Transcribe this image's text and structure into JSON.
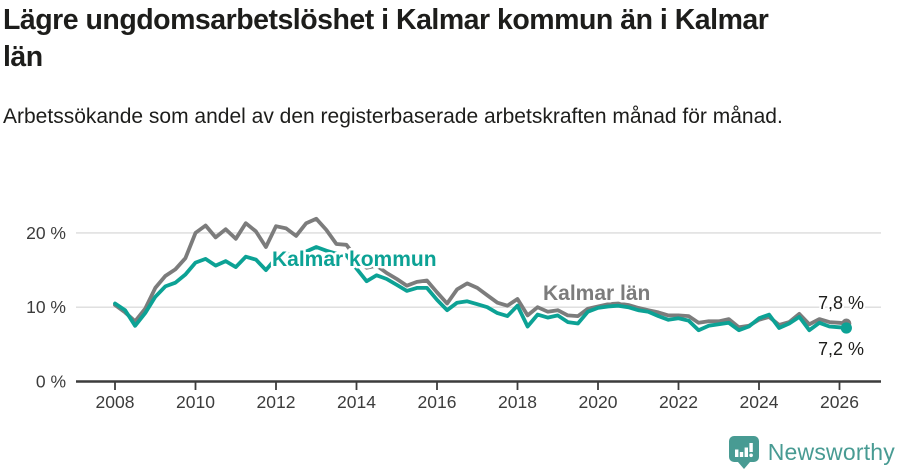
{
  "header": {
    "title": "Lägre ungdomsarbetslöshet i Kalmar kommun än i Kalmar län",
    "subtitle": "Arbetssökande som andel av den registerbaserade arbetskraften månad för månad."
  },
  "footer": {
    "brand": "Newsworthy",
    "icon": "bar-chart-pin-icon"
  },
  "colors": {
    "kommun_line": "#0ca295",
    "lan_line": "#7c7c7c",
    "grid": "#dcdcdc",
    "axis": "#3c3c3c",
    "text": "#1d1d1b",
    "brand_teal": "#489b93"
  },
  "chart_data": {
    "type": "line",
    "unit": "%",
    "grid": true,
    "legend_position": "inline-labels-on-lines",
    "x_axis": {
      "range": [
        2008,
        2026.5
      ],
      "ticks": [
        2008,
        2010,
        2012,
        2014,
        2016,
        2018,
        2020,
        2022,
        2024,
        2026
      ]
    },
    "y_axis": {
      "range": [
        0,
        23
      ],
      "ticks": [
        {
          "value": 0,
          "label": "0 %"
        },
        {
          "value": 10,
          "label": "10 %"
        },
        {
          "value": 20,
          "label": "20 %"
        }
      ]
    },
    "series": [
      {
        "name": "Kalmar län",
        "color": "#7c7c7c",
        "end_label": "7,8 %",
        "x": [
          2008.0,
          2008.25,
          2008.5,
          2008.75,
          2009.0,
          2009.25,
          2009.5,
          2009.75,
          2010.0,
          2010.25,
          2010.5,
          2010.75,
          2011.0,
          2011.25,
          2011.5,
          2011.75,
          2012.0,
          2012.25,
          2012.5,
          2012.75,
          2013.0,
          2013.25,
          2013.5,
          2013.75,
          2014.0,
          2014.25,
          2014.5,
          2014.75,
          2015.0,
          2015.25,
          2015.5,
          2015.75,
          2016.0,
          2016.25,
          2016.5,
          2016.75,
          2017.0,
          2017.25,
          2017.5,
          2017.75,
          2018.0,
          2018.25,
          2018.5,
          2018.75,
          2019.0,
          2019.25,
          2019.5,
          2019.75,
          2020.0,
          2020.25,
          2020.5,
          2020.75,
          2021.0,
          2021.25,
          2021.5,
          2021.75,
          2022.0,
          2022.25,
          2022.5,
          2022.75,
          2023.0,
          2023.25,
          2023.5,
          2023.75,
          2024.0,
          2024.25,
          2024.5,
          2024.75,
          2025.0,
          2025.25,
          2025.5,
          2025.75,
          2026.0,
          2026.17
        ],
        "values": [
          10.3,
          9.3,
          8.1,
          9.8,
          12.6,
          14.2,
          15.1,
          16.6,
          20.0,
          21.0,
          19.4,
          20.5,
          19.2,
          21.3,
          20.2,
          18.1,
          20.9,
          20.6,
          19.6,
          21.3,
          21.9,
          20.4,
          18.5,
          18.4,
          16.6,
          15.3,
          15.6,
          14.6,
          13.8,
          12.9,
          13.4,
          13.6,
          12.0,
          10.5,
          12.4,
          13.2,
          12.6,
          11.6,
          10.6,
          10.2,
          11.1,
          8.9,
          10.0,
          9.4,
          9.6,
          8.9,
          8.8,
          9.8,
          10.1,
          10.4,
          10.5,
          10.3,
          9.9,
          9.6,
          9.3,
          8.9,
          8.9,
          8.8,
          7.9,
          8.1,
          8.1,
          8.4,
          7.3,
          7.5,
          8.3,
          8.7,
          7.6,
          8.0,
          9.1,
          7.7,
          8.4,
          8.0,
          7.9,
          7.8
        ]
      },
      {
        "name": "Kalmar kommun",
        "color": "#0ca295",
        "end_label": "7,2 %",
        "x": [
          2008.0,
          2008.25,
          2008.5,
          2008.75,
          2009.0,
          2009.25,
          2009.5,
          2009.75,
          2010.0,
          2010.25,
          2010.5,
          2010.75,
          2011.0,
          2011.25,
          2011.5,
          2011.75,
          2012.0,
          2012.25,
          2012.5,
          2012.75,
          2013.0,
          2013.25,
          2013.5,
          2013.75,
          2014.0,
          2014.25,
          2014.5,
          2014.75,
          2015.0,
          2015.25,
          2015.5,
          2015.75,
          2016.0,
          2016.25,
          2016.5,
          2016.75,
          2017.0,
          2017.25,
          2017.5,
          2017.75,
          2018.0,
          2018.25,
          2018.5,
          2018.75,
          2019.0,
          2019.25,
          2019.5,
          2019.75,
          2020.0,
          2020.25,
          2020.5,
          2020.75,
          2021.0,
          2021.25,
          2021.5,
          2021.75,
          2022.0,
          2022.25,
          2022.5,
          2022.75,
          2023.0,
          2023.25,
          2023.5,
          2023.75,
          2024.0,
          2024.25,
          2024.5,
          2024.75,
          2025.0,
          2025.25,
          2025.5,
          2025.75,
          2026.0,
          2026.17
        ],
        "values": [
          10.5,
          9.6,
          7.5,
          9.2,
          11.4,
          12.8,
          13.3,
          14.4,
          16.0,
          16.5,
          15.6,
          16.2,
          15.4,
          16.8,
          16.4,
          15.0,
          16.6,
          17.3,
          16.5,
          17.5,
          18.1,
          17.6,
          17.2,
          17.0,
          15.2,
          13.5,
          14.3,
          13.8,
          13.0,
          12.2,
          12.6,
          12.6,
          11.0,
          9.6,
          10.6,
          10.8,
          10.4,
          10.0,
          9.2,
          8.8,
          10.2,
          7.4,
          9.0,
          8.6,
          8.9,
          8.0,
          7.8,
          9.4,
          9.9,
          10.1,
          10.2,
          10.0,
          9.6,
          9.4,
          8.8,
          8.3,
          8.5,
          8.2,
          6.9,
          7.5,
          7.7,
          7.9,
          6.9,
          7.4,
          8.5,
          9.0,
          7.2,
          7.8,
          8.7,
          6.9,
          7.9,
          7.4,
          7.3,
          7.2
        ]
      }
    ]
  }
}
